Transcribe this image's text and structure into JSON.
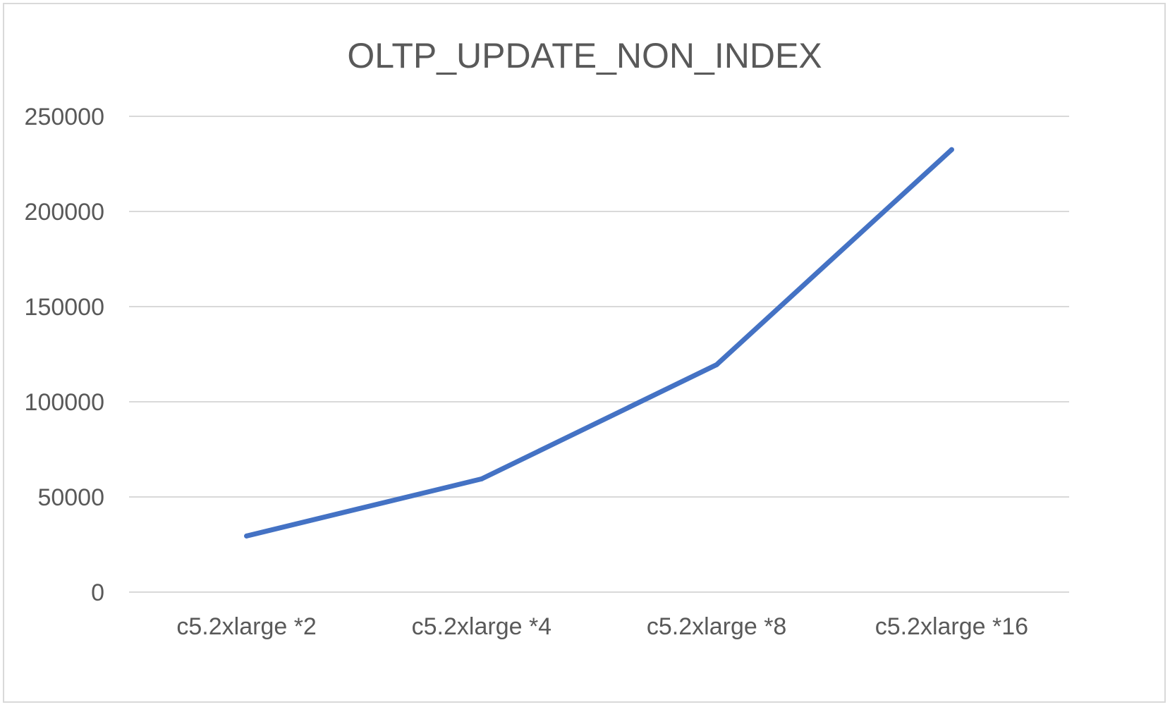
{
  "chart_data": {
    "type": "line",
    "title": "OLTP_UPDATE_NON_INDEX",
    "xlabel": "",
    "ylabel": "",
    "categories": [
      "c5.2xlarge *2",
      "c5.2xlarge *4",
      "c5.2xlarge *8",
      "c5.2xlarge *16"
    ],
    "series": [
      {
        "values": [
          29500,
          59500,
          119500,
          232500
        ],
        "color": "#4472c4"
      }
    ],
    "ylim": [
      0,
      250000
    ],
    "yticks": [
      0,
      50000,
      100000,
      150000,
      200000,
      250000
    ],
    "ytick_labels": [
      "0",
      "50000",
      "100000",
      "150000",
      "200000",
      "250000"
    ],
    "grid": true,
    "legend": "none"
  }
}
